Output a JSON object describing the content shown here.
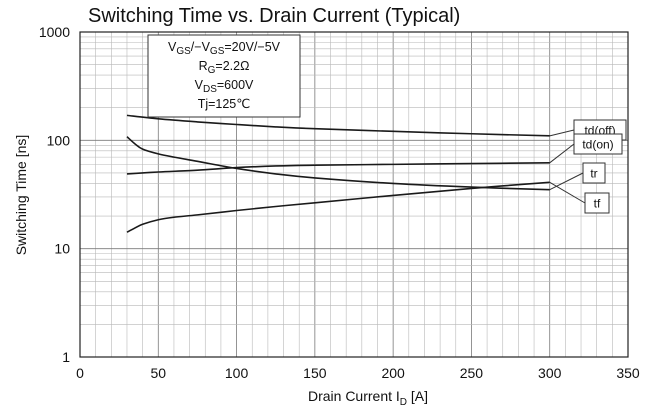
{
  "chart_data": {
    "type": "line",
    "title": "Switching Time vs. Drain Current (Typical)",
    "xlabel": {
      "main": "Drain Current  I",
      "sub": "D",
      "unit": " [A]"
    },
    "ylabel": "Switching Time [ns]",
    "xlim": [
      0,
      350
    ],
    "ylim": [
      1,
      1000
    ],
    "yscale": "log",
    "grid": true,
    "x_ticks": [
      "0",
      "50",
      "100",
      "150",
      "200",
      "250",
      "300",
      "350"
    ],
    "y_ticks": [
      "1",
      "10",
      "100",
      "1000"
    ],
    "conditions": [
      {
        "parts": [
          [
            "V",
            ""
          ],
          [
            "GS",
            "sub"
          ],
          [
            "/−V",
            ""
          ],
          [
            "GS",
            "sub"
          ],
          [
            "=20V/−5V",
            ""
          ]
        ]
      },
      {
        "parts": [
          [
            "R",
            ""
          ],
          [
            "G",
            "sub"
          ],
          [
            "=2.2Ω",
            ""
          ]
        ]
      },
      {
        "parts": [
          [
            "V",
            ""
          ],
          [
            "DS",
            "sub"
          ],
          [
            "=600V",
            ""
          ]
        ]
      },
      {
        "parts": [
          [
            "Tj=125℃",
            ""
          ]
        ]
      }
    ],
    "series": [
      {
        "name": "td(off)",
        "x": [
          30,
          50,
          75,
          100,
          125,
          150,
          200,
          250,
          300
        ],
        "y": [
          170,
          158,
          148,
          140,
          133,
          128,
          121,
          115,
          110
        ]
      },
      {
        "name": "td(on)",
        "x": [
          30,
          50,
          75,
          100,
          125,
          150,
          200,
          250,
          300
        ],
        "y": [
          49,
          51,
          53,
          56,
          58,
          59,
          60,
          61,
          62
        ]
      },
      {
        "name": "tr",
        "x": [
          30,
          35,
          40,
          50,
          60,
          75,
          100,
          125,
          150,
          200,
          250,
          300
        ],
        "y": [
          108,
          93,
          83,
          75,
          70,
          64,
          55,
          49,
          45,
          40,
          37,
          35
        ]
      },
      {
        "name": "tf",
        "x": [
          30,
          35,
          40,
          50,
          60,
          75,
          100,
          125,
          150,
          200,
          250,
          300
        ],
        "y": [
          14.2,
          15.5,
          16.8,
          18.5,
          19.5,
          20.5,
          22.5,
          24.5,
          26.5,
          31,
          36,
          41
        ]
      }
    ]
  }
}
